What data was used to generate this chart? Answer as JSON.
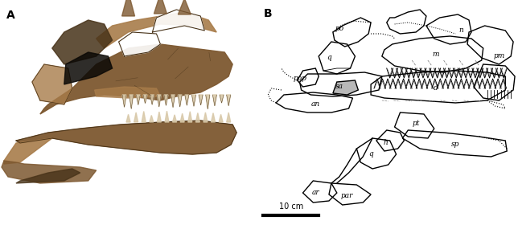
{
  "fig_width": 6.44,
  "fig_height": 2.8,
  "dpi": 100,
  "background_color": "#ffffff",
  "panel_A_label": "A",
  "panel_B_label": "B",
  "scale_bar_label": "10 cm",
  "scale_bar_color": "#000000",
  "line_color": "#000000",
  "fill_color_gray": "#b8b8b8",
  "label_fontsize": 6.5,
  "panel_label_fontsize": 10
}
